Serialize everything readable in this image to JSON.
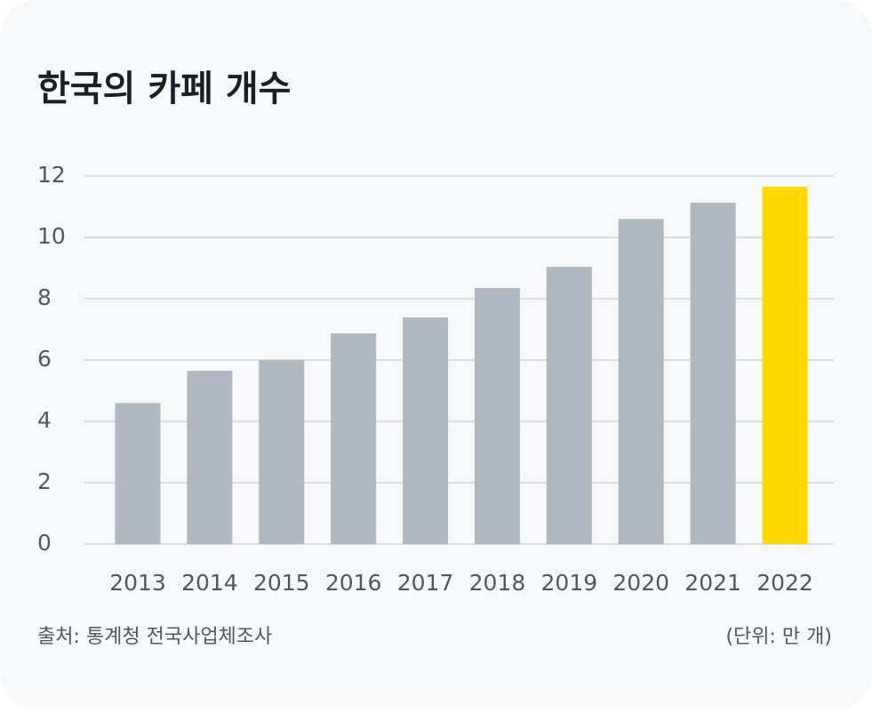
{
  "chart_data": {
    "type": "bar",
    "title": "한국의 카페 개수",
    "categories": [
      "2013",
      "2014",
      "2015",
      "2016",
      "2017",
      "2018",
      "2019",
      "2020",
      "2021",
      "2022"
    ],
    "values": [
      4.6,
      5.65,
      6.0,
      6.87,
      7.39,
      8.35,
      9.04,
      10.6,
      11.13,
      11.65
    ],
    "colors": [
      "#b0b8c1",
      "#b0b8c1",
      "#b0b8c1",
      "#b0b8c1",
      "#b0b8c1",
      "#b0b8c1",
      "#b0b8c1",
      "#b0b8c1",
      "#b0b8c1",
      "#ffd900"
    ],
    "ylim": [
      0,
      12
    ],
    "yticks": [
      0,
      2,
      4,
      6,
      8,
      10,
      12
    ],
    "grid": true,
    "source": "출처: 통계청 전국사업체조사",
    "unit_note": "(단위: 만 개)"
  }
}
